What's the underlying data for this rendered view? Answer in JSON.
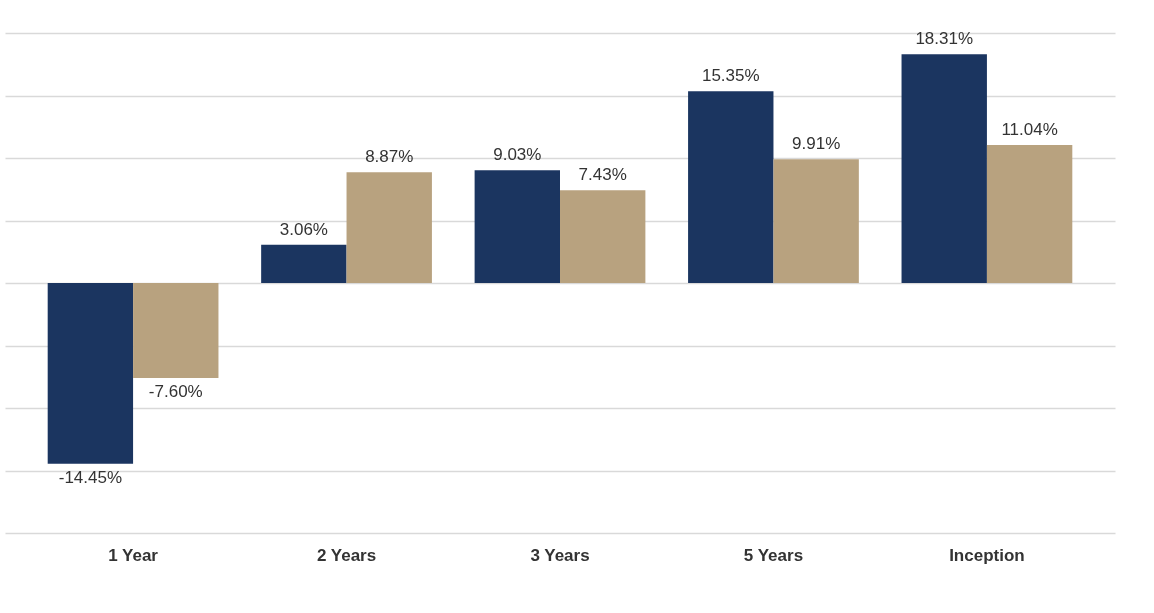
{
  "chart_data": {
    "type": "bar",
    "categories": [
      "1 Year",
      "2 Years",
      "3 Years",
      "5 Years",
      "Inception"
    ],
    "series": [
      {
        "color": "#1b3560",
        "values": [
          -14.45,
          3.06,
          9.03,
          15.35,
          18.31
        ],
        "value_labels": [
          "-14.45%",
          "3.06%",
          "9.03%",
          "15.35%",
          "18.31%"
        ]
      },
      {
        "color": "#b8a27f",
        "values": [
          -7.6,
          8.87,
          7.43,
          9.91,
          11.04
        ],
        "value_labels": [
          "-7.60%",
          "8.87%",
          "7.43%",
          "9.91%",
          "11.04%"
        ]
      }
    ],
    "ylim": [
      -20,
      20
    ],
    "yticks": [
      {
        "value": -20,
        "label": null
      },
      {
        "value": -15,
        "label": null
      },
      {
        "value": -10,
        "label": null
      },
      {
        "value": -5,
        "label": null
      },
      {
        "value": 0,
        "label": null
      },
      {
        "value": 5,
        "label": null
      },
      {
        "value": 10,
        "label": null
      },
      {
        "value": 15,
        "label": null
      },
      {
        "value": 20,
        "label": null
      }
    ],
    "grid": "y",
    "legend": false,
    "tick_labels": "x"
  }
}
